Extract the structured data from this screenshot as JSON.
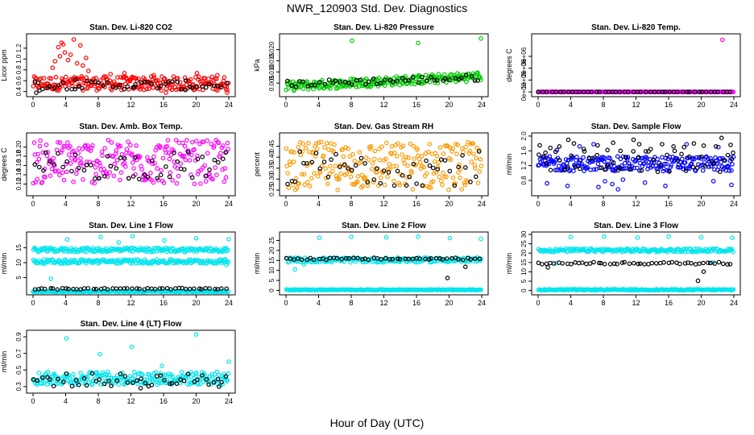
{
  "figure": {
    "title": "NWR_120903  Std. Dev. Diagnostics",
    "xlabel": "Hour of Day (UTC)"
  },
  "chart_data": [
    {
      "type": "scatter",
      "title": "Stan. Dev. Li-820 CO2",
      "ylabel": "Licor ppm",
      "xlim": [
        0,
        24
      ],
      "x_ticks": [
        "0",
        "4",
        "8",
        "12",
        "16",
        "20",
        "24"
      ],
      "ylim": [
        0.35,
        1.42
      ],
      "y_ticks": [
        "0.4",
        "0.6",
        "0.8",
        "1.0",
        "1.2"
      ],
      "series": [
        {
          "color": "#ff0000",
          "min": 0.42,
          "max": 0.68,
          "outliers": [
            [
              3.1,
              1.22
            ],
            [
              3.3,
              1.05
            ],
            [
              3.5,
              1.3
            ],
            [
              3.7,
              1.27
            ],
            [
              3.9,
              1.12
            ],
            [
              4.3,
              0.98
            ],
            [
              4.6,
              1.08
            ],
            [
              5.0,
              1.36
            ],
            [
              5.4,
              0.92
            ],
            [
              5.8,
              1.25
            ],
            [
              6.1,
              0.88
            ],
            [
              6.5,
              1.02
            ],
            [
              6.8,
              0.78
            ],
            [
              2.4,
              0.84
            ],
            [
              2.7,
              0.96
            ],
            [
              9.5,
              0.72
            ],
            [
              11.2,
              0.74
            ],
            [
              14.8,
              0.7
            ],
            [
              16.3,
              0.38
            ],
            [
              20.1,
              0.74
            ],
            [
              23.8,
              0.38
            ],
            [
              22.6,
              0.7
            ]
          ]
        },
        {
          "color": "#000000",
          "min": 0.44,
          "max": 0.6,
          "outliers": [
            [
              0.4,
              0.38
            ],
            [
              0.8,
              0.42
            ],
            [
              5.2,
              0.62
            ],
            [
              12.4,
              0.48
            ],
            [
              18.7,
              0.43
            ]
          ]
        }
      ]
    },
    {
      "type": "scatter",
      "title": "Stan. Dev. Li-820 Pressure",
      "ylabel": "kPa",
      "xlim": [
        0,
        24
      ],
      "x_ticks": [
        "0",
        "4",
        "8",
        "12",
        "16",
        "20",
        "24"
      ],
      "ylim": [
        0.0,
        0.026
      ],
      "y_ticks": [
        "0.005",
        "0.010",
        "0.015",
        "0.020"
      ],
      "series": [
        {
          "color": "#00cc00",
          "min": 0.003,
          "max": 0.01,
          "trend": [
            0.0,
            0.0035,
            24,
            0.008
          ],
          "outliers": [
            [
              8.1,
              0.024
            ],
            [
              16.2,
              0.023
            ],
            [
              23.9,
              0.025
            ]
          ]
        },
        {
          "color": "#000000",
          "min": 0.004,
          "max": 0.009,
          "trend": [
            0.0,
            0.0045,
            24,
            0.0075
          ],
          "outliers": []
        }
      ]
    },
    {
      "type": "scatter",
      "title": "Stan. Dev. Li-820 Temp.",
      "ylabel": "degrees C",
      "xlim": [
        0,
        24
      ],
      "x_ticks": [
        "0",
        "4",
        "8",
        "12",
        "16",
        "20",
        "24"
      ],
      "ylim": [
        -200000,
        4700000
      ],
      "y_ticks": [
        "0e+00",
        "1e+06",
        "2e+06",
        "3e+06"
      ],
      "series": [
        {
          "color": "#ff00ff",
          "min": 0,
          "max": 0,
          "outliers": [
            [
              22.6,
              4400000
            ]
          ]
        },
        {
          "color": "#000000",
          "min": 0,
          "max": 0,
          "outliers": []
        }
      ]
    },
    {
      "type": "scatter",
      "title": "Stan. Dev. Amb. Box Temp.",
      "ylabel": "degrees C",
      "xlim": [
        0,
        24
      ],
      "x_ticks": [
        "0",
        "4",
        "8",
        "12",
        "16",
        "20",
        "24"
      ],
      "ylim": [
        0.1,
        0.225
      ],
      "y_ticks": [
        "0.12",
        "0.14",
        "0.16",
        "0.18",
        "0.20"
      ],
      "series": [
        {
          "color": "#ff00ff",
          "min": 0.12,
          "max": 0.215,
          "outliers": []
        },
        {
          "color": "#000000",
          "min": 0.13,
          "max": 0.19,
          "outliers": []
        }
      ]
    },
    {
      "type": "scatter",
      "title": "Stan. Dev. Gas Stream RH",
      "ylabel": "percent",
      "xlim": [
        0,
        24
      ],
      "x_ticks": [
        "0",
        "4",
        "8",
        "12",
        "16",
        "20",
        "24"
      ],
      "ylim": [
        0.235,
        0.5
      ],
      "y_ticks": [
        "0.25",
        "0.30",
        "0.35",
        "0.40",
        "0.45"
      ],
      "series": [
        {
          "color": "#ff9900",
          "min": 0.25,
          "max": 0.47,
          "outliers": []
        },
        {
          "color": "#000000",
          "min": 0.27,
          "max": 0.43,
          "outliers": []
        }
      ]
    },
    {
      "type": "scatter",
      "title": "Stan. Dev. Sample Flow",
      "ylabel": "ml/min",
      "xlim": [
        0,
        24
      ],
      "x_ticks": [
        "0",
        "4",
        "8",
        "12",
        "16",
        "20",
        "24"
      ],
      "ylim": [
        0.45,
        2.02
      ],
      "y_ticks": [
        "0.8",
        "1.2",
        "1.6",
        "2.0"
      ],
      "series": [
        {
          "color": "#0000ff",
          "min": 1.05,
          "max": 1.45,
          "outliers": [
            [
              1.1,
              0.72
            ],
            [
              3.6,
              0.65
            ],
            [
              7.4,
              0.62
            ],
            [
              8.2,
              0.78
            ],
            [
              9.1,
              0.7
            ],
            [
              9.8,
              0.56
            ],
            [
              10.4,
              0.82
            ],
            [
              13.1,
              0.74
            ],
            [
              15.6,
              0.65
            ],
            [
              21.5,
              0.78
            ],
            [
              23.7,
              0.68
            ],
            [
              2.3,
              1.62
            ],
            [
              5.1,
              1.72
            ],
            [
              6.8,
              1.78
            ],
            [
              18.2,
              1.78
            ],
            [
              22.1,
              1.7
            ]
          ]
        },
        {
          "color": "#000000",
          "min": 1.0,
          "max": 1.6,
          "outliers": [
            [
              0.2,
              1.75
            ],
            [
              0.9,
              1.55
            ],
            [
              1.5,
              1.68
            ],
            [
              2.6,
              1.72
            ],
            [
              3.7,
              1.9
            ],
            [
              4.4,
              1.8
            ],
            [
              5.6,
              1.65
            ],
            [
              7.3,
              1.75
            ],
            [
              8.5,
              1.62
            ],
            [
              9.2,
              1.82
            ],
            [
              10.1,
              1.6
            ],
            [
              11.7,
              1.9
            ],
            [
              12.4,
              1.78
            ],
            [
              13.8,
              1.65
            ],
            [
              15.2,
              1.78
            ],
            [
              16.6,
              1.72
            ],
            [
              17.9,
              1.7
            ],
            [
              19.1,
              1.8
            ],
            [
              20.3,
              1.74
            ],
            [
              21.8,
              1.72
            ],
            [
              22.5,
              1.95
            ],
            [
              23.6,
              1.76
            ],
            [
              23.9,
              1.55
            ]
          ]
        }
      ]
    },
    {
      "type": "scatter",
      "title": "Stan. Dev. Line 1 Flow",
      "ylabel": "ml/min",
      "xlim": [
        0,
        24
      ],
      "x_ticks": [
        "0",
        "4",
        "8",
        "12",
        "16",
        "20",
        "24"
      ],
      "y_ticks": [
        "5",
        "10",
        "15"
      ],
      "ylim": [
        0,
        19.5
      ],
      "series": [
        {
          "color": "#00e5ee",
          "bands": [
            [
              14.3,
              0.7
            ],
            [
              10.4,
              0.7
            ],
            [
              0.3,
              0.15
            ]
          ],
          "outliers": [
            [
              4.2,
              17.8
            ],
            [
              8.3,
              18.6
            ],
            [
              10.5,
              16.8
            ],
            [
              12.2,
              18.9
            ],
            [
              16.1,
              17.5
            ],
            [
              20.0,
              18.2
            ],
            [
              24.0,
              17.9
            ],
            [
              2.2,
              4.6
            ],
            [
              23.7,
              9.2
            ]
          ]
        },
        {
          "color": "#000000",
          "bands": [
            [
              1.2,
              0.25
            ]
          ],
          "outliers": []
        }
      ]
    },
    {
      "type": "scatter",
      "title": "Stan. Dev. Line 2 Flow",
      "ylabel": "ml/min",
      "xlim": [
        0,
        24
      ],
      "x_ticks": [
        "0",
        "4",
        "8",
        "12",
        "16",
        "20",
        "24"
      ],
      "y_ticks": [
        "0",
        "5",
        "10",
        "15",
        "20",
        "25"
      ],
      "ylim": [
        -1,
        28
      ],
      "series": [
        {
          "color": "#00e5ee",
          "bands": [
            [
              15.2,
              1.2
            ],
            [
              0.3,
              0.2
            ]
          ],
          "outliers": [
            [
              4.1,
              26.3
            ],
            [
              8.0,
              26.8
            ],
            [
              12.3,
              26.5
            ],
            [
              16.2,
              26.9
            ],
            [
              20.1,
              26.2
            ],
            [
              23.9,
              25.8
            ],
            [
              1.1,
              10.5
            ],
            [
              2.2,
              13.0
            ]
          ]
        },
        {
          "color": "#000000",
          "bands": [
            [
              15.8,
              0.5
            ]
          ],
          "outliers": [
            [
              19.8,
              6.2
            ],
            [
              22.0,
              11.8
            ]
          ]
        }
      ]
    },
    {
      "type": "scatter",
      "title": "Stan. Dev. Line 3 Flow",
      "ylabel": "ml/min",
      "xlim": [
        0,
        24
      ],
      "x_ticks": [
        "0",
        "4",
        "8",
        "12",
        "16",
        "20",
        "24"
      ],
      "y_ticks": [
        "0",
        "5",
        "10",
        "15",
        "20",
        "25",
        "30"
      ],
      "ylim": [
        -1,
        30
      ],
      "series": [
        {
          "color": "#00e5ee",
          "bands": [
            [
              21.5,
              0.9
            ],
            [
              0.4,
              0.3
            ]
          ],
          "outliers": [
            [
              4.0,
              28.6
            ],
            [
              8.1,
              28.9
            ],
            [
              12.2,
              28.3
            ],
            [
              16.0,
              28.9
            ],
            [
              20.0,
              28.4
            ],
            [
              23.8,
              28.2
            ],
            [
              21.4,
              15.0
            ],
            [
              2.2,
              14.5
            ]
          ]
        },
        {
          "color": "#000000",
          "bands": [
            [
              14.6,
              0.6
            ]
          ],
          "outliers": [
            [
              1.2,
              12.4
            ],
            [
              19.6,
              5.2
            ],
            [
              20.3,
              10.1
            ]
          ]
        }
      ]
    },
    {
      "type": "scatter",
      "title": "Stan. Dev. Line 4 (LT) Flow",
      "ylabel": "ml/min",
      "xlim": [
        0,
        24
      ],
      "x_ticks": [
        "0",
        "4",
        "8",
        "12",
        "16",
        "20",
        "24"
      ],
      "ylim": [
        0.25,
        0.95
      ],
      "y_ticks": [
        "0.3",
        "0.5",
        "0.7",
        "0.9"
      ],
      "series": [
        {
          "color": "#00e5ee",
          "min": 0.32,
          "max": 0.48,
          "outliers": [
            [
              4.1,
              0.88
            ],
            [
              8.2,
              0.69
            ],
            [
              12.1,
              0.78
            ],
            [
              20.0,
              0.93
            ],
            [
              24.0,
              0.6
            ],
            [
              15.8,
              0.55
            ]
          ]
        },
        {
          "color": "#000000",
          "min": 0.3,
          "max": 0.46,
          "outliers": [
            [
              13.2,
              0.28
            ],
            [
              22.8,
              0.3
            ]
          ]
        }
      ]
    }
  ]
}
